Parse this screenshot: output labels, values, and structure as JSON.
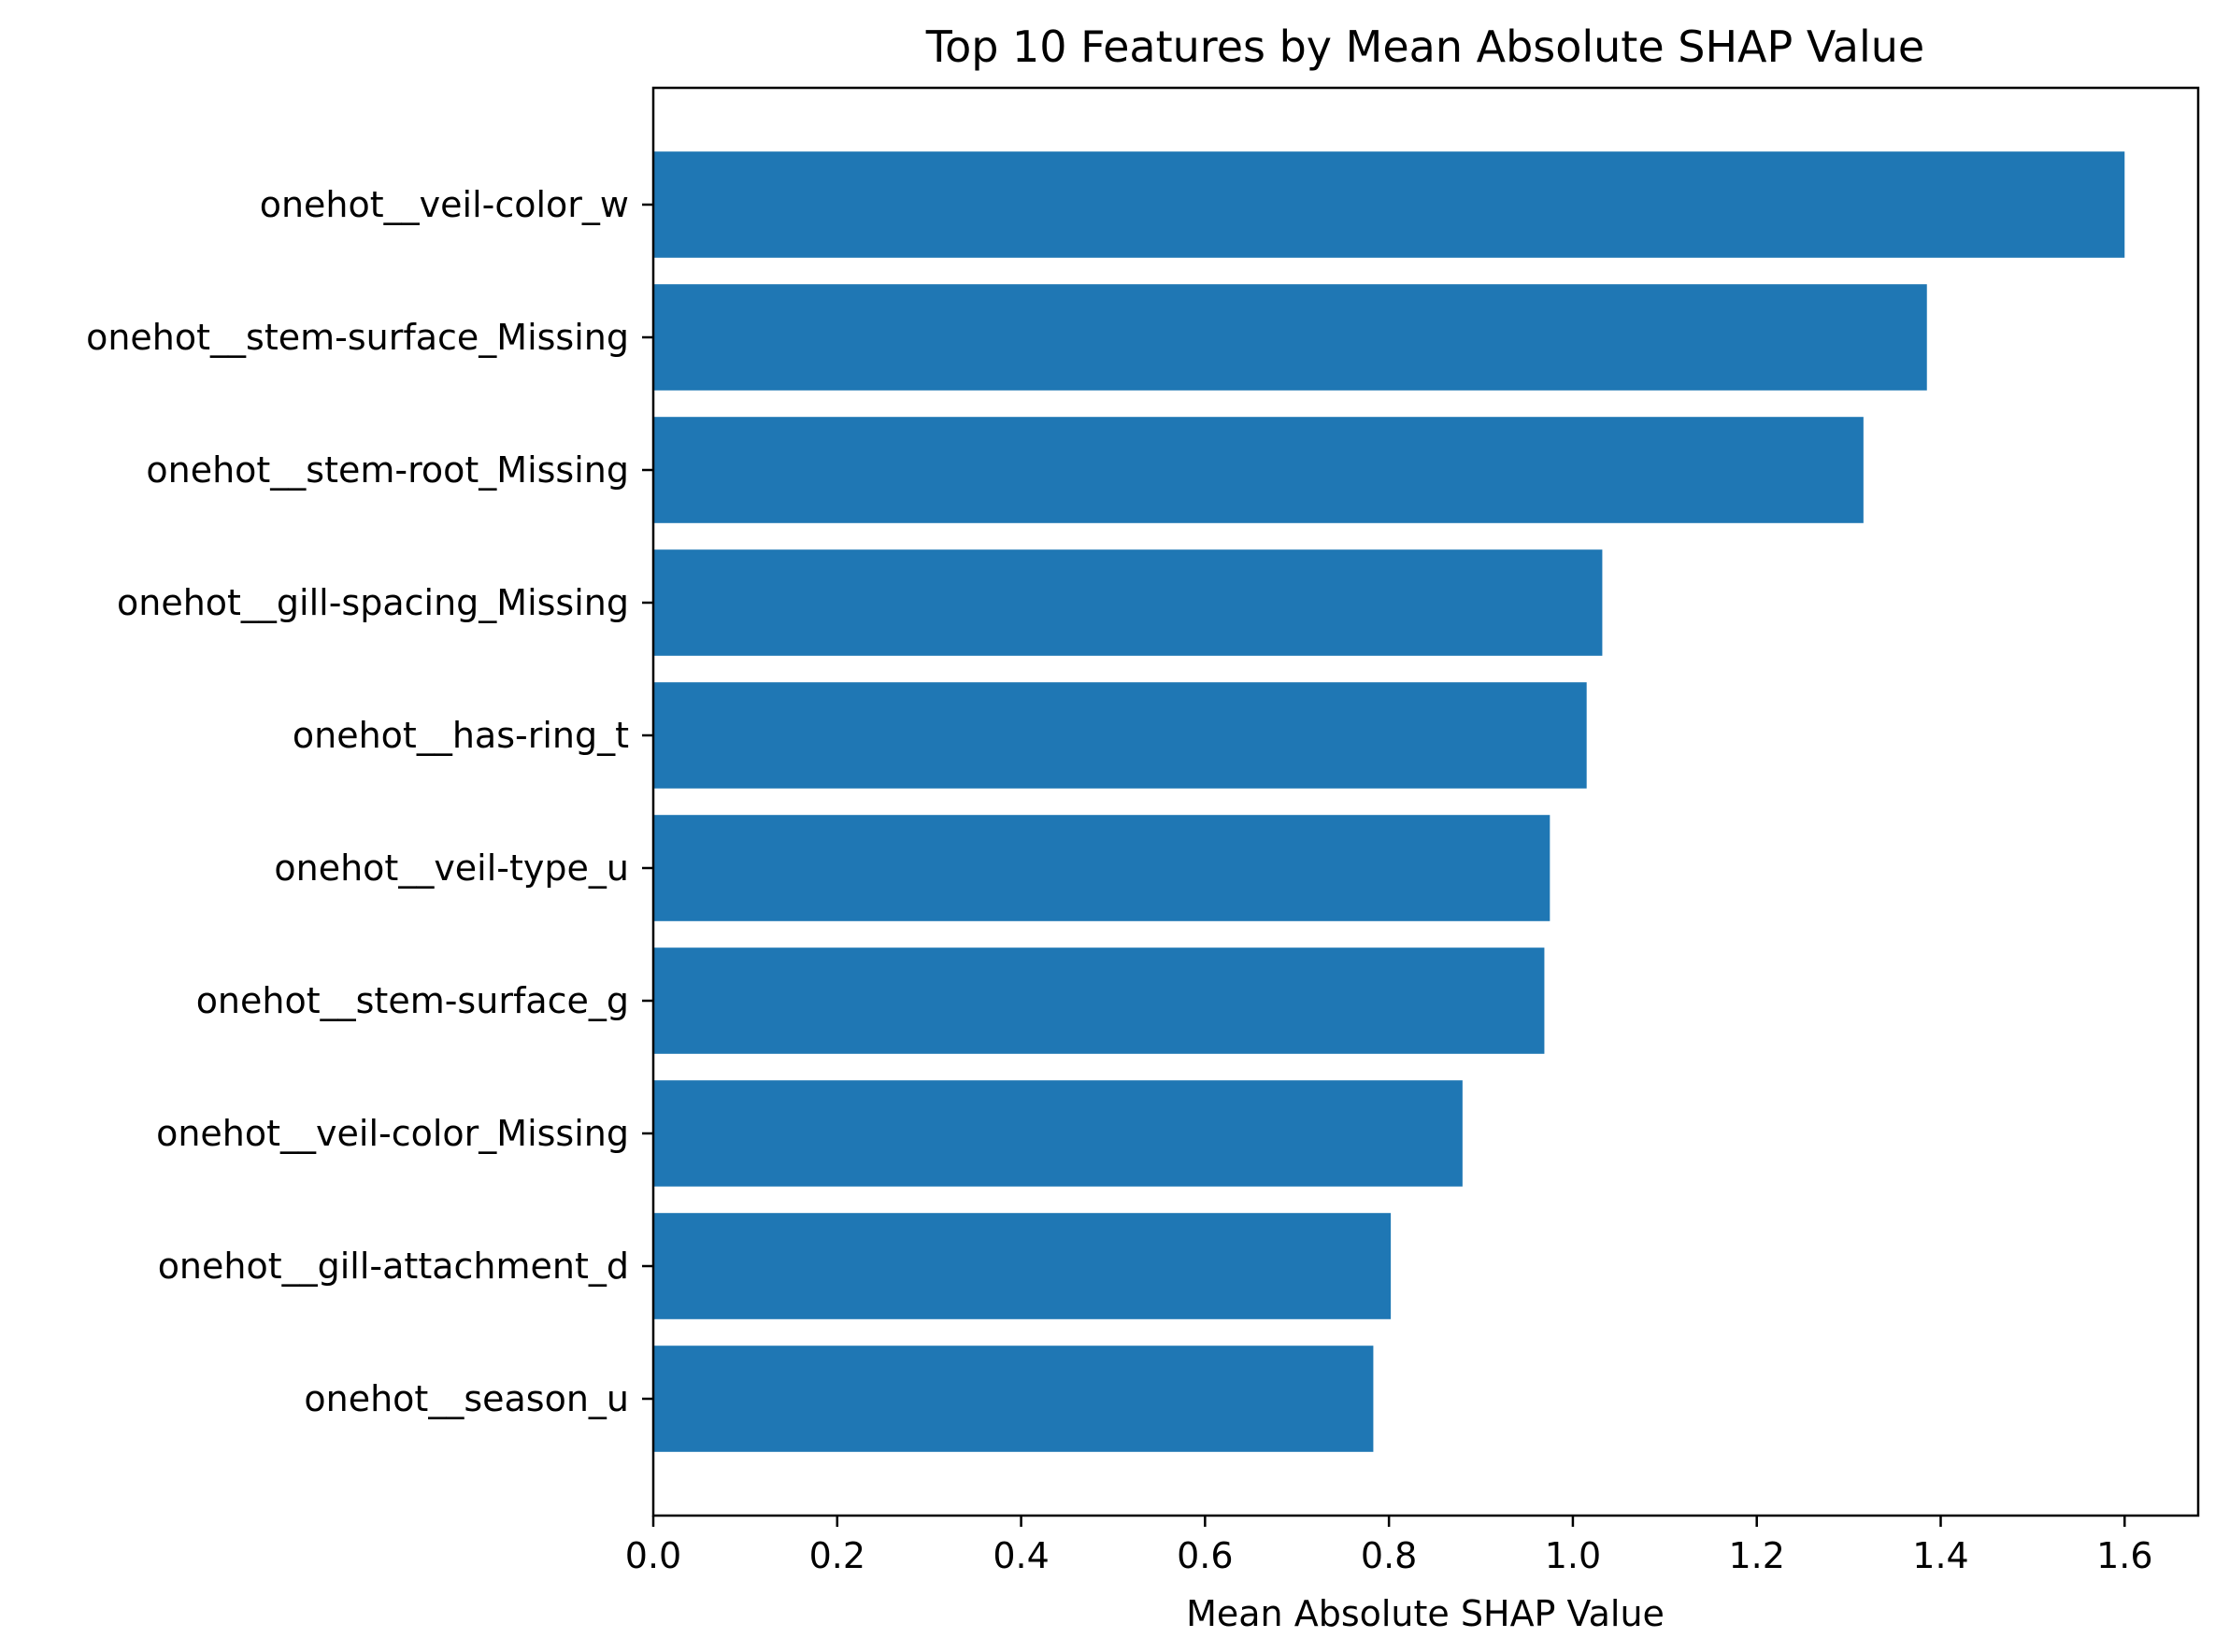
{
  "chart_data": {
    "type": "bar",
    "orientation": "horizontal",
    "title": "Top 10 Features by Mean Absolute SHAP Value",
    "xlabel": "Mean Absolute SHAP Value",
    "ylabel": "",
    "categories": [
      "onehot__veil-color_w",
      "onehot__stem-surface_Missing",
      "onehot__stem-root_Missing",
      "onehot__gill-spacing_Missing",
      "onehot__has-ring_t",
      "onehot__veil-type_u",
      "onehot__stem-surface_g",
      "onehot__veil-color_Missing",
      "onehot__gill-attachment_d",
      "onehot__season_u"
    ],
    "values": [
      1.6,
      1.385,
      1.316,
      1.032,
      1.015,
      0.975,
      0.969,
      0.88,
      0.802,
      0.783
    ],
    "xlim": [
      0.0,
      1.68
    ],
    "xticks": [
      "0.0",
      "0.2",
      "0.4",
      "0.6",
      "0.8",
      "1.0",
      "1.2",
      "1.4",
      "1.6"
    ],
    "bar_color": "#1f77b4",
    "grid": false,
    "legend": "none"
  }
}
